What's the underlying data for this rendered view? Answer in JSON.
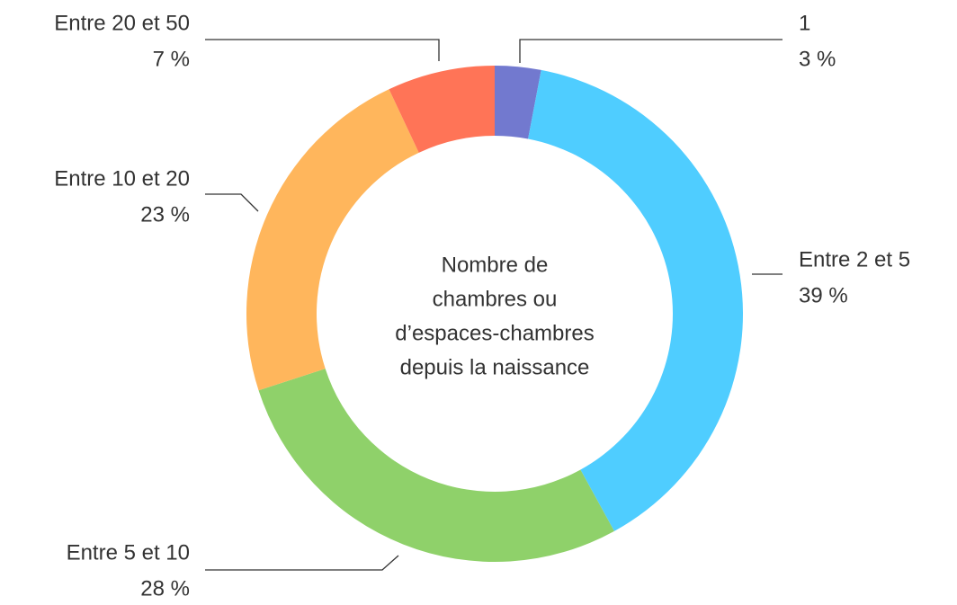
{
  "chart_data": {
    "type": "donut",
    "center_text": [
      "Nombre de",
      "chambres ou",
      "d’espaces-chambres",
      "depuis la naissance"
    ],
    "categories": [
      "1",
      "Entre 2 et 5",
      "Entre 5 et 10",
      "Entre 10 et 20",
      "Entre 20 et 50"
    ],
    "values": [
      3,
      39,
      28,
      23,
      7
    ],
    "value_labels": [
      "3 %",
      "39 %",
      "28 %",
      "23 %",
      "7 %"
    ],
    "colors": [
      "#7279cf",
      "#4fcdff",
      "#8fd16a",
      "#ffb65c",
      "#ff7457"
    ]
  }
}
